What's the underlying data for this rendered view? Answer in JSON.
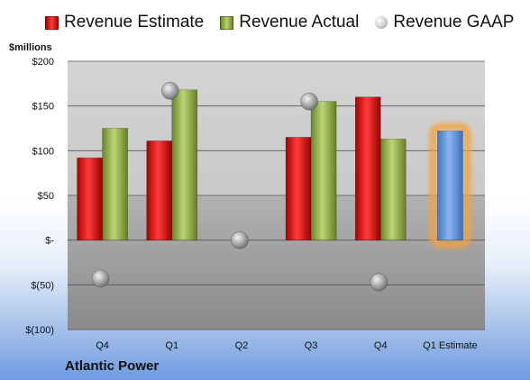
{
  "chart_data": {
    "type": "bar",
    "ylabel": "$millions",
    "ylim": [
      -100,
      200
    ],
    "yticks": [
      200,
      150,
      100,
      50,
      0,
      -50,
      -100
    ],
    "ytick_labels": [
      "$200",
      "$150",
      "$100",
      "$50",
      "$-",
      "$(50)",
      "$(100)"
    ],
    "categories": [
      "Q4",
      "Q1",
      "Q2",
      "Q3",
      "Q4",
      "Q1 Estimate"
    ],
    "series": [
      {
        "name": "Revenue Estimate",
        "values": [
          92,
          111,
          null,
          115,
          160,
          null
        ],
        "color": "#d01a1a"
      },
      {
        "name": "Revenue Actual",
        "values": [
          125,
          168,
          null,
          155,
          113,
          null
        ],
        "color": "#8fae45"
      },
      {
        "name": "Revenue GAAP",
        "values": [
          -43,
          167,
          0,
          155,
          -47,
          null
        ],
        "color": "#b0b0b0"
      },
      {
        "name": "Q1 Estimate",
        "values": [
          null,
          null,
          null,
          null,
          null,
          122
        ],
        "color": "#5b8fd6"
      }
    ],
    "grid": true,
    "legend": "top"
  },
  "legend": {
    "estimate": "Revenue Estimate",
    "actual": "Revenue Actual",
    "gaap": "Revenue GAAP"
  },
  "company": "Atlantic Power"
}
